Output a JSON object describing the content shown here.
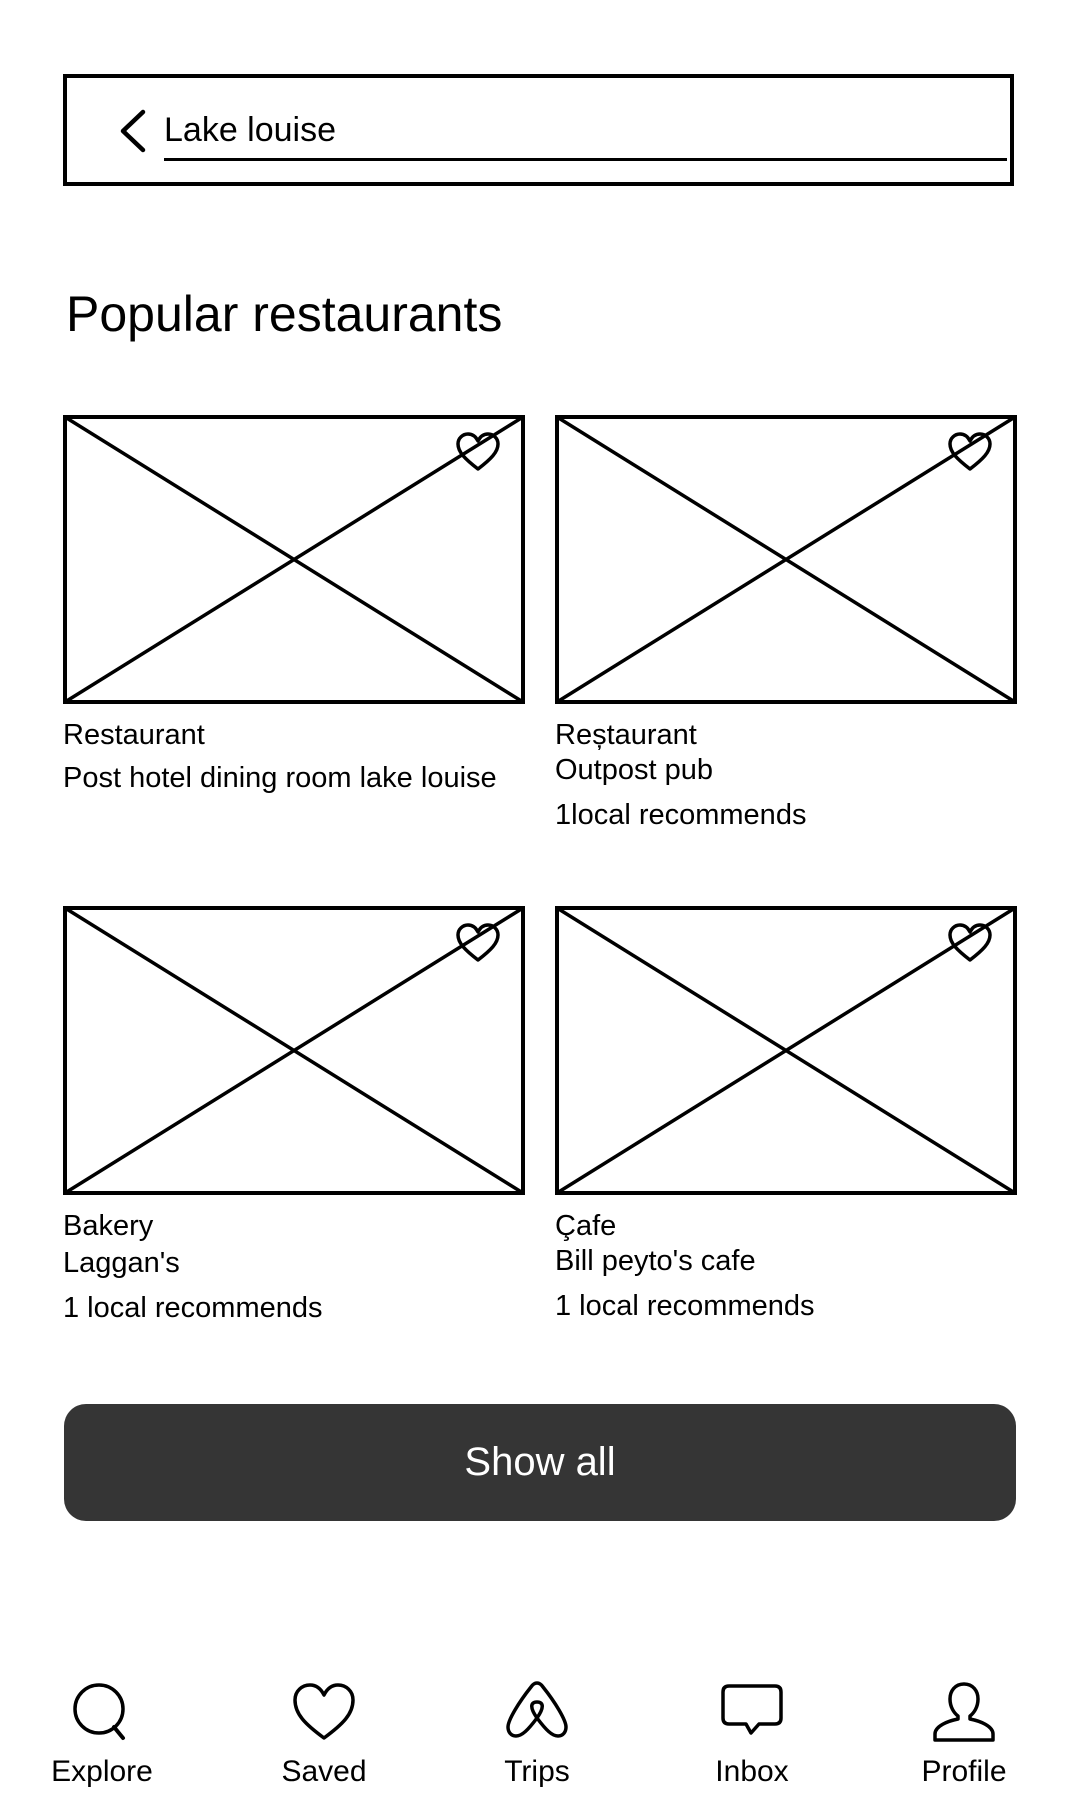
{
  "search": {
    "value": "Lake louise",
    "back_icon": "chevron-left-icon"
  },
  "section": {
    "title": "Popular restaurants"
  },
  "cards": [
    {
      "category": "Restaurant",
      "name": "Post hotel dining room lake louise",
      "recommends": "",
      "icon": "heart-icon"
    },
    {
      "category": "Reștaurant",
      "name": "Outpost pub",
      "recommends": "1local recommends",
      "icon": "heart-icon"
    },
    {
      "category": "Bakery",
      "name": "Laggan's",
      "recommends": "1 local recommends",
      "icon": "heart-icon"
    },
    {
      "category": "Çafe",
      "name": "Bill peyto's cafe",
      "recommends": "1 local recommends",
      "icon": "heart-icon"
    }
  ],
  "show_all": {
    "label": "Show all",
    "color": "#353535"
  },
  "tabs": [
    {
      "label": "Explore",
      "icon": "search-icon"
    },
    {
      "label": "Saved",
      "icon": "heart-icon"
    },
    {
      "label": "Trips",
      "icon": "airbnb-logo-icon"
    },
    {
      "label": "Inbox",
      "icon": "chat-bubble-icon"
    },
    {
      "label": "Profile",
      "icon": "user-icon"
    }
  ]
}
